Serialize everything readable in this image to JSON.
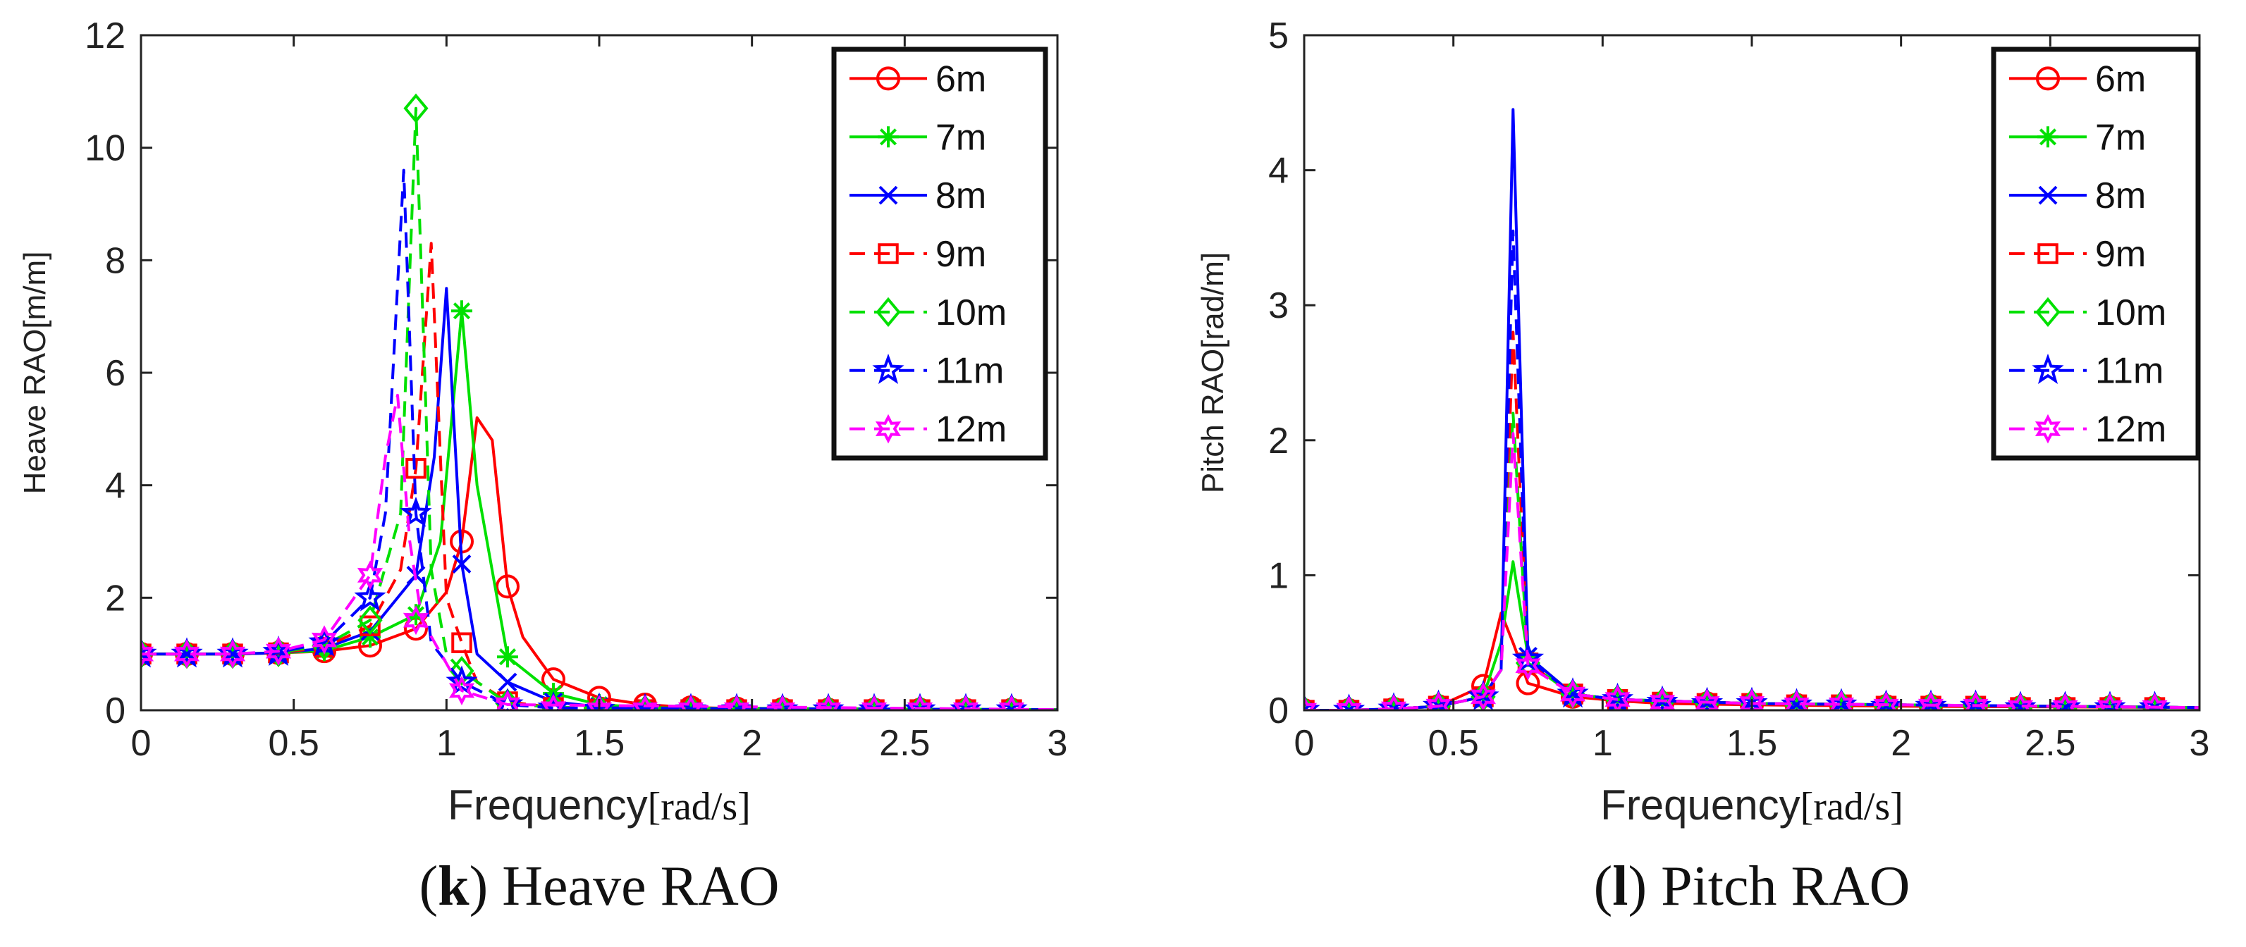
{
  "chart_data": [
    {
      "type": "line",
      "panel": "k",
      "caption_letter": "k",
      "caption_open": "(",
      "caption_close": ")",
      "caption_text": "Heave RAO",
      "title": "",
      "xlabel_sans": "Frequency",
      "xlabel_serif": "[rad/s]",
      "ylabel": "Heave RAO[m/m]",
      "xlim": [
        0,
        3
      ],
      "ylim": [
        0,
        12
      ],
      "xticks": [
        0,
        0.5,
        1,
        1.5,
        2,
        2.5,
        3
      ],
      "xtick_labels": [
        "0",
        "0.5",
        "1",
        "1.5",
        "2",
        "2.5",
        "3"
      ],
      "yticks": [
        0,
        2,
        4,
        6,
        8,
        10,
        12
      ],
      "ytick_labels": [
        "0",
        "2",
        "4",
        "6",
        "8",
        "10",
        "12"
      ],
      "legend_position": "top-right",
      "marker_x": [
        0,
        0.15,
        0.3,
        0.45,
        0.6,
        0.75,
        0.9,
        1.05,
        1.2,
        1.35,
        1.5,
        1.65,
        1.8,
        1.95,
        2.1,
        2.25,
        2.4,
        2.55,
        2.7,
        2.85
      ],
      "series": [
        {
          "name": "6m",
          "color": "#ff0000",
          "dash": "solid",
          "marker": "circle",
          "curve_x": [
            0,
            0.15,
            0.3,
            0.45,
            0.6,
            0.75,
            0.9,
            1.0,
            1.05,
            1.1,
            1.15,
            1.2,
            1.25,
            1.35,
            1.5,
            1.65,
            1.8,
            1.95,
            2.1,
            3.0
          ],
          "curve_y": [
            1.0,
            1.0,
            1.0,
            1.02,
            1.05,
            1.15,
            1.45,
            2.1,
            3.0,
            5.2,
            4.8,
            2.2,
            1.3,
            0.55,
            0.22,
            0.1,
            0.05,
            0.03,
            0.02,
            0.01
          ],
          "marker_y": [
            1.0,
            1.0,
            1.0,
            1.02,
            1.05,
            1.15,
            1.45,
            3.0,
            2.2,
            0.55,
            0.22,
            0.1,
            0.05,
            0.03,
            0.02,
            0.01,
            0.01,
            0.01,
            0.01,
            0.01
          ]
        },
        {
          "name": "7m",
          "color": "#00e000",
          "dash": "solid",
          "marker": "asterisk",
          "curve_x": [
            0,
            0.15,
            0.3,
            0.45,
            0.6,
            0.75,
            0.9,
            0.98,
            1.05,
            1.1,
            1.2,
            1.35,
            1.5,
            1.65,
            1.8,
            3.0
          ],
          "curve_y": [
            1.0,
            1.0,
            1.0,
            1.02,
            1.06,
            1.3,
            1.7,
            3.0,
            7.1,
            4.0,
            0.95,
            0.3,
            0.1,
            0.05,
            0.03,
            0.01
          ],
          "marker_y": [
            1.0,
            1.0,
            1.0,
            1.02,
            1.06,
            1.3,
            1.7,
            7.1,
            0.95,
            0.3,
            0.1,
            0.05,
            0.03,
            0.02,
            0.01,
            0.01,
            0.01,
            0.01,
            0.01,
            0.01
          ]
        },
        {
          "name": "8m",
          "color": "#0000ff",
          "dash": "solid",
          "marker": "x",
          "curve_x": [
            0,
            0.15,
            0.3,
            0.45,
            0.6,
            0.75,
            0.9,
            0.96,
            1.0,
            1.05,
            1.1,
            1.2,
            1.35,
            1.5,
            1.65,
            3.0
          ],
          "curve_y": [
            1.0,
            1.0,
            1.0,
            1.02,
            1.1,
            1.4,
            2.4,
            4.5,
            7.5,
            2.6,
            1.0,
            0.5,
            0.15,
            0.06,
            0.03,
            0.01
          ],
          "marker_y": [
            1.0,
            1.0,
            1.0,
            1.02,
            1.1,
            1.4,
            2.4,
            2.6,
            0.5,
            0.15,
            0.06,
            0.03,
            0.02,
            0.01,
            0.01,
            0.01,
            0.01,
            0.01,
            0.01,
            0.01
          ]
        },
        {
          "name": "9m",
          "color": "#ff0000",
          "dash": "dashed",
          "marker": "square",
          "curve_x": [
            0,
            0.15,
            0.3,
            0.45,
            0.6,
            0.75,
            0.85,
            0.9,
            0.95,
            1.0,
            1.05,
            1.1,
            1.2,
            1.35,
            1.5,
            3.0
          ],
          "curve_y": [
            1.0,
            1.0,
            1.0,
            1.02,
            1.12,
            1.5,
            2.5,
            4.3,
            8.3,
            2.0,
            1.2,
            0.5,
            0.15,
            0.05,
            0.02,
            0.01
          ],
          "marker_y": [
            1.0,
            1.0,
            1.0,
            1.02,
            1.12,
            1.5,
            4.3,
            1.2,
            0.15,
            0.05,
            0.02,
            0.01,
            0.01,
            0.01,
            0.01,
            0.01,
            0.01,
            0.01,
            0.01,
            0.01
          ]
        },
        {
          "name": "10m",
          "color": "#00e000",
          "dash": "dashed",
          "marker": "diamond",
          "curve_x": [
            0,
            0.15,
            0.3,
            0.45,
            0.6,
            0.75,
            0.85,
            0.9,
            0.95,
            1.0,
            1.05,
            1.2,
            1.35,
            3.0
          ],
          "curve_y": [
            1.0,
            1.0,
            1.0,
            1.03,
            1.15,
            1.6,
            3.5,
            10.7,
            2.5,
            1.0,
            0.7,
            0.12,
            0.05,
            0.01
          ],
          "marker_y": [
            1.0,
            1.0,
            1.0,
            1.03,
            1.15,
            1.6,
            10.7,
            0.7,
            0.12,
            0.05,
            0.02,
            0.01,
            0.01,
            0.01,
            0.01,
            0.01,
            0.01,
            0.01,
            0.01,
            0.01
          ]
        },
        {
          "name": "11m",
          "color": "#0000ff",
          "dash": "dashed",
          "marker": "pentagram",
          "curve_x": [
            0,
            0.15,
            0.3,
            0.45,
            0.6,
            0.75,
            0.8,
            0.86,
            0.9,
            0.95,
            1.05,
            1.2,
            1.35,
            3.0
          ],
          "curve_y": [
            1.0,
            1.0,
            1.0,
            1.03,
            1.2,
            2.0,
            3.5,
            9.6,
            3.5,
            1.2,
            0.5,
            0.1,
            0.04,
            0.01
          ],
          "marker_y": [
            1.0,
            1.0,
            1.0,
            1.03,
            1.2,
            2.0,
            3.5,
            0.5,
            0.1,
            0.04,
            0.02,
            0.01,
            0.01,
            0.01,
            0.01,
            0.01,
            0.01,
            0.01,
            0.01,
            0.01
          ]
        },
        {
          "name": "12m",
          "color": "#ff00ff",
          "dash": "dashed",
          "marker": "hexagram",
          "curve_x": [
            0,
            0.15,
            0.3,
            0.45,
            0.6,
            0.75,
            0.8,
            0.84,
            0.88,
            0.92,
            1.05,
            1.2,
            3.0
          ],
          "curve_y": [
            1.0,
            1.0,
            1.0,
            1.05,
            1.25,
            2.4,
            4.5,
            5.6,
            3.0,
            1.6,
            0.35,
            0.1,
            0.01
          ],
          "marker_y": [
            1.0,
            1.0,
            1.0,
            1.05,
            1.25,
            2.4,
            1.6,
            0.35,
            0.1,
            0.03,
            0.01,
            0.01,
            0.01,
            0.01,
            0.01,
            0.01,
            0.01,
            0.01,
            0.01,
            0.01
          ]
        }
      ]
    },
    {
      "type": "line",
      "panel": "l",
      "caption_letter": "l",
      "caption_open": "(",
      "caption_close": ")",
      "caption_text": "Pitch RAO",
      "title": "",
      "xlabel_sans": "Frequency",
      "xlabel_serif": "[rad/s]",
      "ylabel": "Pitch RAO[rad/m]",
      "xlim": [
        0,
        3
      ],
      "ylim": [
        0,
        5
      ],
      "xticks": [
        0,
        0.5,
        1,
        1.5,
        2,
        2.5,
        3
      ],
      "xtick_labels": [
        "0",
        "0.5",
        "1",
        "1.5",
        "2",
        "2.5",
        "3"
      ],
      "yticks": [
        0,
        1,
        2,
        3,
        4,
        5
      ],
      "ytick_labels": [
        "0",
        "1",
        "2",
        "3",
        "4",
        "5"
      ],
      "legend_position": "top-right",
      "marker_x": [
        0,
        0.15,
        0.3,
        0.45,
        0.6,
        0.75,
        0.9,
        1.05,
        1.2,
        1.35,
        1.5,
        1.65,
        1.8,
        1.95,
        2.1,
        2.25,
        2.4,
        2.55,
        2.7,
        2.85
      ],
      "series": [
        {
          "name": "6m",
          "color": "#ff0000",
          "dash": "solid",
          "marker": "circle",
          "curve_x": [
            0,
            0.15,
            0.3,
            0.45,
            0.6,
            0.66,
            0.7,
            0.75,
            0.9,
            1.05,
            1.2,
            1.5,
            2.0,
            3.0
          ],
          "curve_y": [
            0.0,
            0.0,
            0.01,
            0.03,
            0.18,
            0.72,
            0.5,
            0.2,
            0.1,
            0.07,
            0.05,
            0.04,
            0.03,
            0.02
          ],
          "marker_y": [
            0.0,
            0.0,
            0.01,
            0.03,
            0.18,
            0.2,
            0.1,
            0.07,
            0.05,
            0.05,
            0.04,
            0.04,
            0.03,
            0.03,
            0.03,
            0.02,
            0.02,
            0.02,
            0.02,
            0.02
          ]
        },
        {
          "name": "7m",
          "color": "#00e000",
          "dash": "solid",
          "marker": "asterisk",
          "curve_x": [
            0,
            0.15,
            0.3,
            0.45,
            0.6,
            0.66,
            0.7,
            0.75,
            0.9,
            1.05,
            1.5,
            3.0
          ],
          "curve_y": [
            0.0,
            0.0,
            0.01,
            0.03,
            0.1,
            0.5,
            1.1,
            0.4,
            0.12,
            0.08,
            0.05,
            0.02
          ],
          "marker_y": [
            0.0,
            0.0,
            0.01,
            0.03,
            0.1,
            0.4,
            0.12,
            0.08,
            0.06,
            0.05,
            0.05,
            0.04,
            0.04,
            0.03,
            0.03,
            0.03,
            0.02,
            0.02,
            0.02,
            0.02
          ]
        },
        {
          "name": "8m",
          "color": "#0000ff",
          "dash": "solid",
          "marker": "x",
          "curve_x": [
            0,
            0.15,
            0.3,
            0.45,
            0.6,
            0.66,
            0.7,
            0.75,
            0.9,
            1.05,
            1.5,
            3.0
          ],
          "curve_y": [
            0.0,
            0.0,
            0.01,
            0.03,
            0.1,
            0.3,
            4.45,
            0.4,
            0.12,
            0.08,
            0.05,
            0.02
          ],
          "marker_y": [
            0.0,
            0.0,
            0.01,
            0.03,
            0.1,
            0.4,
            0.12,
            0.08,
            0.06,
            0.05,
            0.05,
            0.04,
            0.04,
            0.03,
            0.03,
            0.03,
            0.02,
            0.02,
            0.02,
            0.02
          ]
        },
        {
          "name": "9m",
          "color": "#ff0000",
          "dash": "dashed",
          "marker": "square",
          "curve_x": [
            0,
            0.15,
            0.3,
            0.45,
            0.6,
            0.66,
            0.7,
            0.75,
            0.9,
            1.05,
            1.5,
            3.0
          ],
          "curve_y": [
            0.0,
            0.0,
            0.01,
            0.03,
            0.1,
            0.3,
            2.8,
            0.35,
            0.12,
            0.08,
            0.05,
            0.02
          ],
          "marker_y": [
            0.0,
            0.0,
            0.01,
            0.03,
            0.1,
            0.35,
            0.12,
            0.08,
            0.06,
            0.05,
            0.05,
            0.04,
            0.04,
            0.03,
            0.03,
            0.03,
            0.02,
            0.02,
            0.02,
            0.02
          ]
        },
        {
          "name": "10m",
          "color": "#00e000",
          "dash": "dashed",
          "marker": "diamond",
          "curve_x": [
            0,
            0.15,
            0.3,
            0.45,
            0.6,
            0.66,
            0.7,
            0.75,
            0.9,
            1.05,
            1.5,
            3.0
          ],
          "curve_y": [
            0.0,
            0.0,
            0.01,
            0.03,
            0.1,
            0.3,
            2.2,
            0.35,
            0.12,
            0.08,
            0.05,
            0.02
          ],
          "marker_y": [
            0.0,
            0.0,
            0.01,
            0.03,
            0.1,
            0.35,
            0.12,
            0.08,
            0.06,
            0.05,
            0.05,
            0.04,
            0.04,
            0.03,
            0.03,
            0.03,
            0.02,
            0.02,
            0.02,
            0.02
          ]
        },
        {
          "name": "11m",
          "color": "#0000ff",
          "dash": "dashed",
          "marker": "pentagram",
          "curve_x": [
            0,
            0.15,
            0.3,
            0.45,
            0.6,
            0.66,
            0.7,
            0.75,
            0.9,
            1.05,
            1.5,
            3.0
          ],
          "curve_y": [
            0.0,
            0.0,
            0.01,
            0.03,
            0.1,
            0.3,
            3.55,
            0.38,
            0.12,
            0.08,
            0.05,
            0.02
          ],
          "marker_y": [
            0.0,
            0.0,
            0.01,
            0.03,
            0.1,
            0.38,
            0.12,
            0.08,
            0.06,
            0.05,
            0.05,
            0.04,
            0.04,
            0.03,
            0.03,
            0.03,
            0.02,
            0.02,
            0.02,
            0.02
          ]
        },
        {
          "name": "12m",
          "color": "#ff00ff",
          "dash": "dashed",
          "marker": "hexagram",
          "curve_x": [
            0,
            0.15,
            0.3,
            0.45,
            0.6,
            0.66,
            0.7,
            0.75,
            0.9,
            1.05,
            1.5,
            3.0
          ],
          "curve_y": [
            0.0,
            0.0,
            0.01,
            0.03,
            0.1,
            0.3,
            2.05,
            0.33,
            0.12,
            0.08,
            0.05,
            0.02
          ],
          "marker_y": [
            0.0,
            0.0,
            0.01,
            0.03,
            0.1,
            0.33,
            0.12,
            0.08,
            0.06,
            0.05,
            0.05,
            0.04,
            0.04,
            0.03,
            0.03,
            0.03,
            0.02,
            0.02,
            0.02,
            0.02
          ]
        }
      ]
    }
  ]
}
